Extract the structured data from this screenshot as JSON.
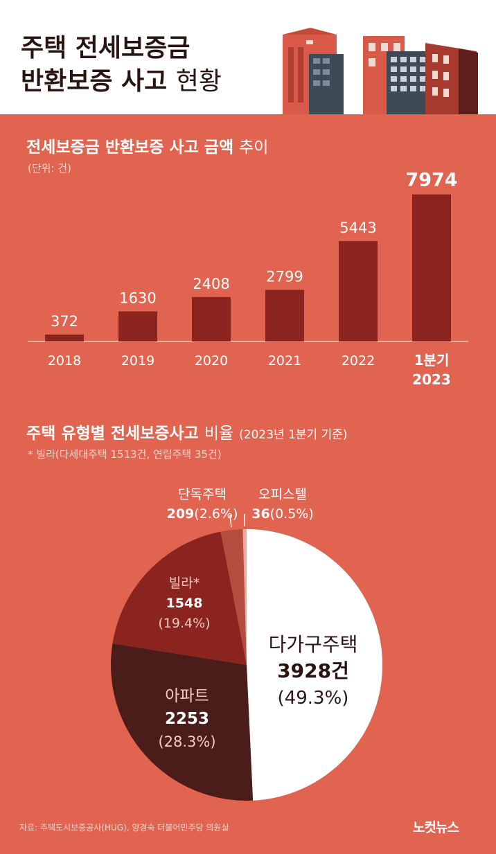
{
  "header": {
    "title_line1": "주택 전세보증금",
    "title_line2_bold": "반환보증 사고",
    "title_line2_light": "현황"
  },
  "section1": {
    "title_bold": "전세보증금 반환보증 사고 금액",
    "title_light": "추이",
    "unit": "(단위: 건)"
  },
  "section2": {
    "title_bold": "주택 유형별 전세보증사고",
    "title_light": "비율",
    "title_note": "(2023년 1분기 기준)",
    "footnote": "* 빌라(다세대주택 1513건, 연립주택 35건)"
  },
  "colors": {
    "background_panel": "#e06450",
    "bar": "#8b231f",
    "bar_highlight": "#8b231f",
    "axis": "#f3c1b7",
    "slice_multi_family": "#ffffff",
    "slice_apartment": "#4a1d1a",
    "slice_villa": "#8b231f",
    "slice_detached": "#b24d3f",
    "slice_officetel": "#f0a89c"
  },
  "chart_data": [
    {
      "type": "bar",
      "categories": [
        "2018",
        "2019",
        "2020",
        "2021",
        "2022",
        "1분기\n2023"
      ],
      "category_lines": [
        [
          "2018"
        ],
        [
          "2019"
        ],
        [
          "2020"
        ],
        [
          "2021"
        ],
        [
          "2022"
        ],
        [
          "1분기",
          "2023"
        ]
      ],
      "values": [
        372,
        1630,
        2408,
        2799,
        5443,
        7974
      ],
      "value_labels": [
        "372",
        "1630",
        "2408",
        "2799",
        "5443",
        "7974"
      ],
      "highlight_index": 5,
      "ylim": [
        0,
        8000
      ],
      "grid": false
    },
    {
      "type": "pie",
      "slices": [
        {
          "key": "multi_family",
          "label": "다가구주택",
          "count_label": "3928건",
          "pct_label": "(49.3%)",
          "value": 3928,
          "percent": 49.3,
          "color_key": "slice_multi_family"
        },
        {
          "key": "apartment",
          "label": "아파트",
          "count_label": "2253",
          "pct_label": "(28.3%)",
          "value": 2253,
          "percent": 28.3,
          "color_key": "slice_apartment"
        },
        {
          "key": "villa",
          "label": "빌라*",
          "count_label": "1548",
          "pct_label": "(19.4%)",
          "value": 1548,
          "percent": 19.4,
          "color_key": "slice_villa"
        },
        {
          "key": "detached",
          "label": "단독주택",
          "count_label": "209",
          "pct_label": "(2.6%)",
          "value": 209,
          "percent": 2.6,
          "color_key": "slice_detached"
        },
        {
          "key": "officetel",
          "label": "오피스텔",
          "count_label": "36",
          "pct_label": "(0.5%)",
          "value": 36,
          "percent": 0.5,
          "color_key": "slice_officetel"
        }
      ],
      "start_angle_deg": 0,
      "direction": "clockwise"
    }
  ],
  "source": "자료: 주택도시보증공사(HUG), 양경숙 더불어민주당 의원실",
  "logo": "노컷뉴스"
}
